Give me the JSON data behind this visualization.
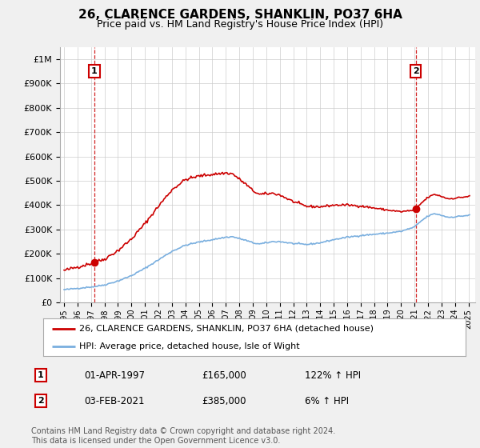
{
  "title": "26, CLARENCE GARDENS, SHANKLIN, PO37 6HA",
  "subtitle": "Price paid vs. HM Land Registry's House Price Index (HPI)",
  "sale1_date": "01-APR-1997",
  "sale1_price": 165000,
  "sale1_hpi": "122% ↑ HPI",
  "sale2_date": "03-FEB-2021",
  "sale2_price": 385000,
  "sale2_hpi": "6% ↑ HPI",
  "legend_label1": "26, CLARENCE GARDENS, SHANKLIN, PO37 6HA (detached house)",
  "legend_label2": "HPI: Average price, detached house, Isle of Wight",
  "footer": "Contains HM Land Registry data © Crown copyright and database right 2024.\nThis data is licensed under the Open Government Licence v3.0.",
  "ylabel_ticks": [
    "£0",
    "£100K",
    "£200K",
    "£300K",
    "£400K",
    "£500K",
    "£600K",
    "£700K",
    "£800K",
    "£900K",
    "£1M"
  ],
  "ytick_values": [
    0,
    100000,
    200000,
    300000,
    400000,
    500000,
    600000,
    700000,
    800000,
    900000,
    1000000
  ],
  "ylim": [
    0,
    1050000
  ],
  "xlim_start": 1994.7,
  "xlim_end": 2025.5,
  "sale1_x": 1997.25,
  "sale2_x": 2021.09,
  "hpi_color": "#7aafdf",
  "price_color": "#cc0000",
  "sale_marker_color": "#cc0000",
  "vline_color": "#cc0000",
  "grid_color": "#cccccc",
  "bg_color": "#f0f0f0",
  "plot_bg": "#ffffff",
  "title_fontsize": 11,
  "subtitle_fontsize": 9,
  "axis_fontsize": 8
}
